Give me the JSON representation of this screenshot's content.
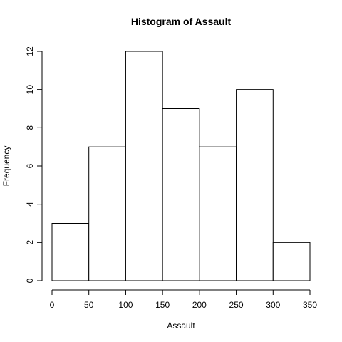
{
  "chart_data": {
    "type": "bar",
    "title": "Histogram of Assault",
    "xlabel": "Assault",
    "ylabel": "Frequency",
    "bins": [
      {
        "start": 0,
        "end": 50,
        "count": 3
      },
      {
        "start": 50,
        "end": 100,
        "count": 7
      },
      {
        "start": 100,
        "end": 150,
        "count": 12
      },
      {
        "start": 150,
        "end": 200,
        "count": 9
      },
      {
        "start": 200,
        "end": 250,
        "count": 7
      },
      {
        "start": 250,
        "end": 300,
        "count": 10
      },
      {
        "start": 300,
        "end": 350,
        "count": 2
      }
    ],
    "xlim": [
      0,
      350
    ],
    "ylim": [
      0,
      12
    ],
    "x_ticks": [
      "0",
      "50",
      "100",
      "150",
      "200",
      "250",
      "300",
      "350"
    ],
    "y_ticks": [
      "0",
      "2",
      "4",
      "6",
      "8",
      "10",
      "12"
    ],
    "grid": false,
    "bar_fill": "#ffffff",
    "bar_stroke": "#000000"
  }
}
